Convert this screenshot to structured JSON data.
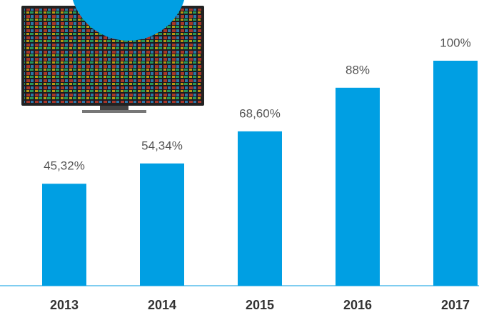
{
  "chart_data": {
    "type": "bar",
    "categories": [
      "2013",
      "2014",
      "2015",
      "2016",
      "2017"
    ],
    "values": [
      45.32,
      54.34,
      68.6,
      88,
      100
    ],
    "value_labels": [
      "45,32%",
      "54,34%",
      "68,60%",
      "88%",
      "100%"
    ],
    "color": "#009fe3"
  }
}
